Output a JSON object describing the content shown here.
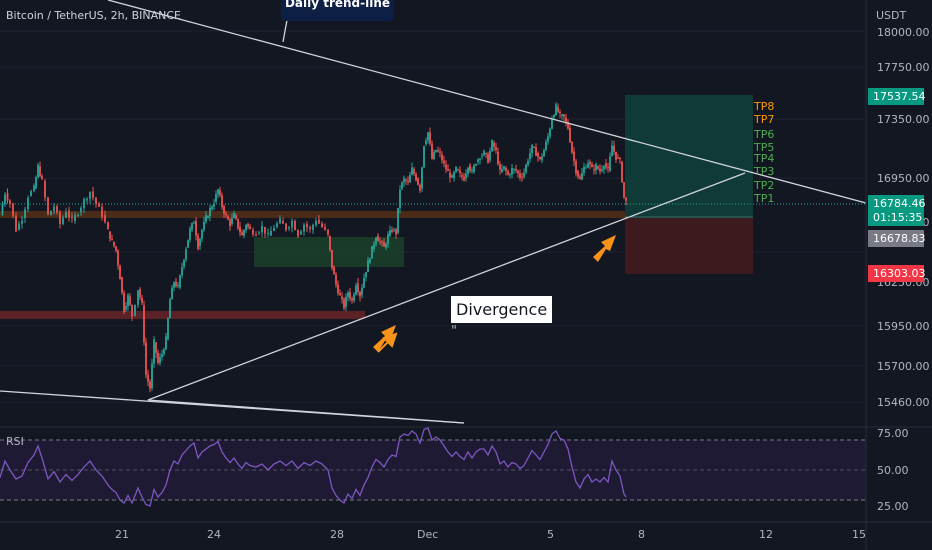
{
  "header": {
    "symbol": "Bitcoin / TetherUS, 2h, BINANCE",
    "trend_callout": "Daily trend-line"
  },
  "annotations": {
    "divergence": "Divergence",
    "quote_mark": "\""
  },
  "colors": {
    "background": "#131722",
    "candle_up": "#26a69a",
    "candle_down": "#ef5350",
    "trend_line": "#d1d4dc",
    "arrow": "#f7931a",
    "rsi_line": "#7e57c2",
    "rsi_band": "#1e1a33"
  },
  "chart_data": {
    "type": "candlestick",
    "price_axis_title": "USDT",
    "price_ticks": [
      "18000.00",
      "17750.00",
      "17350.00",
      "16950.00",
      "16550.00",
      "16250.00",
      "15950.00",
      "15700.00",
      "15460.00"
    ],
    "time_ticks": [
      "21",
      "24",
      "28",
      "Dec",
      "5",
      "8",
      "12",
      "15"
    ],
    "price_labels": {
      "tp": "17537.54",
      "current": "16784.46",
      "countdown": "01:15:35",
      "entry": "16678.83",
      "stop": "16303.03"
    },
    "tp_levels": [
      "TP8",
      "TP7",
      "TP6",
      "TP5",
      "TP4",
      "TP3",
      "TP2",
      "TP1"
    ],
    "rsi": {
      "label": "RSI",
      "ticks": [
        "75.00",
        "50.00",
        "25.00"
      ],
      "levels": [
        70,
        50,
        30
      ]
    },
    "price_path": [
      [
        0,
        16700
      ],
      [
        5,
        16850
      ],
      [
        10,
        16780
      ],
      [
        16,
        16600
      ],
      [
        22,
        16680
      ],
      [
        28,
        16830
      ],
      [
        34,
        16880
      ],
      [
        38,
        17030
      ],
      [
        42,
        16930
      ],
      [
        48,
        16700
      ],
      [
        54,
        16760
      ],
      [
        60,
        16640
      ],
      [
        66,
        16730
      ],
      [
        72,
        16660
      ],
      [
        78,
        16720
      ],
      [
        84,
        16800
      ],
      [
        90,
        16860
      ],
      [
        96,
        16780
      ],
      [
        102,
        16700
      ],
      [
        108,
        16590
      ],
      [
        112,
        16520
      ],
      [
        116,
        16460
      ],
      [
        120,
        16280
      ],
      [
        124,
        16060
      ],
      [
        128,
        16150
      ],
      [
        132,
        16020
      ],
      [
        138,
        16200
      ],
      [
        142,
        16090
      ],
      [
        146,
        15620
      ],
      [
        150,
        15530
      ],
      [
        154,
        15840
      ],
      [
        158,
        15700
      ],
      [
        162,
        15760
      ],
      [
        166,
        15860
      ],
      [
        170,
        16130
      ],
      [
        174,
        16250
      ],
      [
        178,
        16210
      ],
      [
        182,
        16350
      ],
      [
        186,
        16480
      ],
      [
        190,
        16600
      ],
      [
        194,
        16660
      ],
      [
        198,
        16490
      ],
      [
        202,
        16600
      ],
      [
        206,
        16680
      ],
      [
        210,
        16740
      ],
      [
        214,
        16790
      ],
      [
        218,
        16870
      ],
      [
        222,
        16760
      ],
      [
        226,
        16690
      ],
      [
        230,
        16640
      ],
      [
        234,
        16700
      ],
      [
        238,
        16620
      ],
      [
        242,
        16560
      ],
      [
        246,
        16640
      ],
      [
        250,
        16600
      ],
      [
        256,
        16580
      ],
      [
        262,
        16620
      ],
      [
        268,
        16560
      ],
      [
        274,
        16620
      ],
      [
        280,
        16660
      ],
      [
        286,
        16610
      ],
      [
        292,
        16660
      ],
      [
        298,
        16570
      ],
      [
        304,
        16640
      ],
      [
        310,
        16600
      ],
      [
        316,
        16670
      ],
      [
        322,
        16620
      ],
      [
        328,
        16560
      ],
      [
        332,
        16350
      ],
      [
        336,
        16230
      ],
      [
        340,
        16150
      ],
      [
        344,
        16080
      ],
      [
        348,
        16180
      ],
      [
        352,
        16120
      ],
      [
        356,
        16240
      ],
      [
        360,
        16160
      ],
      [
        364,
        16280
      ],
      [
        368,
        16380
      ],
      [
        372,
        16470
      ],
      [
        376,
        16560
      ],
      [
        380,
        16520
      ],
      [
        384,
        16480
      ],
      [
        388,
        16560
      ],
      [
        392,
        16600
      ],
      [
        396,
        16580
      ],
      [
        400,
        16880
      ],
      [
        404,
        16940
      ],
      [
        408,
        16920
      ],
      [
        412,
        17010
      ],
      [
        416,
        16950
      ],
      [
        420,
        16880
      ],
      [
        424,
        17180
      ],
      [
        428,
        17260
      ],
      [
        432,
        17080
      ],
      [
        436,
        17140
      ],
      [
        440,
        17110
      ],
      [
        444,
        17040
      ],
      [
        448,
        16990
      ],
      [
        452,
        16950
      ],
      [
        456,
        17010
      ],
      [
        460,
        16970
      ],
      [
        464,
        16950
      ],
      [
        468,
        17040
      ],
      [
        472,
        16990
      ],
      [
        476,
        17060
      ],
      [
        480,
        17100
      ],
      [
        484,
        17120
      ],
      [
        488,
        17070
      ],
      [
        492,
        17190
      ],
      [
        496,
        17130
      ],
      [
        500,
        16990
      ],
      [
        504,
        17020
      ],
      [
        508,
        16970
      ],
      [
        512,
        17010
      ],
      [
        516,
        17000
      ],
      [
        520,
        16960
      ],
      [
        524,
        16990
      ],
      [
        528,
        17080
      ],
      [
        532,
        17160
      ],
      [
        536,
        17120
      ],
      [
        540,
        17070
      ],
      [
        544,
        17140
      ],
      [
        548,
        17230
      ],
      [
        552,
        17360
      ],
      [
        556,
        17430
      ],
      [
        560,
        17370
      ],
      [
        564,
        17360
      ],
      [
        568,
        17290
      ],
      [
        572,
        17130
      ],
      [
        576,
        17000
      ],
      [
        580,
        16940
      ],
      [
        584,
        17020
      ],
      [
        588,
        17060
      ],
      [
        592,
        17010
      ],
      [
        596,
        17030
      ],
      [
        600,
        17000
      ],
      [
        604,
        17050
      ],
      [
        608,
        17000
      ],
      [
        612,
        17170
      ],
      [
        616,
        17090
      ],
      [
        620,
        17060
      ],
      [
        624,
        16820
      ],
      [
        626,
        16790
      ]
    ],
    "rsi_path": [
      [
        0,
        45
      ],
      [
        5,
        56
      ],
      [
        10,
        50
      ],
      [
        16,
        44
      ],
      [
        22,
        46
      ],
      [
        28,
        55
      ],
      [
        34,
        60
      ],
      [
        38,
        66
      ],
      [
        42,
        58
      ],
      [
        48,
        44
      ],
      [
        54,
        49
      ],
      [
        60,
        42
      ],
      [
        66,
        47
      ],
      [
        72,
        43
      ],
      [
        78,
        47
      ],
      [
        84,
        52
      ],
      [
        90,
        56
      ],
      [
        96,
        50
      ],
      [
        102,
        46
      ],
      [
        108,
        40
      ],
      [
        112,
        37
      ],
      [
        116,
        35
      ],
      [
        120,
        30
      ],
      [
        124,
        28
      ],
      [
        128,
        33
      ],
      [
        132,
        28
      ],
      [
        138,
        38
      ],
      [
        142,
        32
      ],
      [
        146,
        27
      ],
      [
        150,
        26
      ],
      [
        154,
        37
      ],
      [
        158,
        32
      ],
      [
        162,
        35
      ],
      [
        166,
        40
      ],
      [
        170,
        50
      ],
      [
        174,
        56
      ],
      [
        178,
        54
      ],
      [
        182,
        60
      ],
      [
        186,
        63
      ],
      [
        190,
        66
      ],
      [
        194,
        68
      ],
      [
        198,
        58
      ],
      [
        202,
        62
      ],
      [
        206,
        64
      ],
      [
        210,
        66
      ],
      [
        214,
        67
      ],
      [
        218,
        69
      ],
      [
        222,
        62
      ],
      [
        226,
        58
      ],
      [
        230,
        55
      ],
      [
        234,
        58
      ],
      [
        238,
        54
      ],
      [
        242,
        51
      ],
      [
        246,
        55
      ],
      [
        250,
        53
      ],
      [
        256,
        52
      ],
      [
        262,
        54
      ],
      [
        268,
        50
      ],
      [
        274,
        54
      ],
      [
        280,
        56
      ],
      [
        286,
        53
      ],
      [
        292,
        56
      ],
      [
        298,
        51
      ],
      [
        304,
        55
      ],
      [
        310,
        53
      ],
      [
        316,
        56
      ],
      [
        322,
        54
      ],
      [
        328,
        50
      ],
      [
        332,
        38
      ],
      [
        336,
        33
      ],
      [
        340,
        30
      ],
      [
        344,
        28
      ],
      [
        348,
        34
      ],
      [
        352,
        31
      ],
      [
        356,
        37
      ],
      [
        360,
        33
      ],
      [
        364,
        40
      ],
      [
        368,
        45
      ],
      [
        372,
        52
      ],
      [
        376,
        57
      ],
      [
        380,
        55
      ],
      [
        384,
        52
      ],
      [
        388,
        57
      ],
      [
        392,
        60
      ],
      [
        396,
        59
      ],
      [
        400,
        72
      ],
      [
        404,
        74
      ],
      [
        408,
        73
      ],
      [
        412,
        76
      ],
      [
        416,
        74
      ],
      [
        420,
        68
      ],
      [
        424,
        77
      ],
      [
        428,
        78
      ],
      [
        432,
        70
      ],
      [
        436,
        72
      ],
      [
        440,
        70
      ],
      [
        444,
        66
      ],
      [
        448,
        62
      ],
      [
        452,
        59
      ],
      [
        456,
        62
      ],
      [
        460,
        59
      ],
      [
        464,
        57
      ],
      [
        468,
        62
      ],
      [
        472,
        58
      ],
      [
        476,
        62
      ],
      [
        480,
        64
      ],
      [
        484,
        64
      ],
      [
        488,
        60
      ],
      [
        492,
        66
      ],
      [
        496,
        62
      ],
      [
        500,
        54
      ],
      [
        504,
        56
      ],
      [
        508,
        52
      ],
      [
        512,
        55
      ],
      [
        516,
        54
      ],
      [
        520,
        51
      ],
      [
        524,
        53
      ],
      [
        528,
        58
      ],
      [
        532,
        63
      ],
      [
        536,
        60
      ],
      [
        540,
        57
      ],
      [
        544,
        62
      ],
      [
        548,
        67
      ],
      [
        552,
        74
      ],
      [
        556,
        76
      ],
      [
        560,
        71
      ],
      [
        564,
        70
      ],
      [
        568,
        64
      ],
      [
        572,
        52
      ],
      [
        576,
        42
      ],
      [
        580,
        38
      ],
      [
        584,
        44
      ],
      [
        588,
        47
      ],
      [
        592,
        42
      ],
      [
        596,
        44
      ],
      [
        600,
        42
      ],
      [
        604,
        45
      ],
      [
        608,
        42
      ],
      [
        612,
        56
      ],
      [
        616,
        50
      ],
      [
        620,
        46
      ],
      [
        624,
        34
      ],
      [
        626,
        32
      ]
    ]
  }
}
